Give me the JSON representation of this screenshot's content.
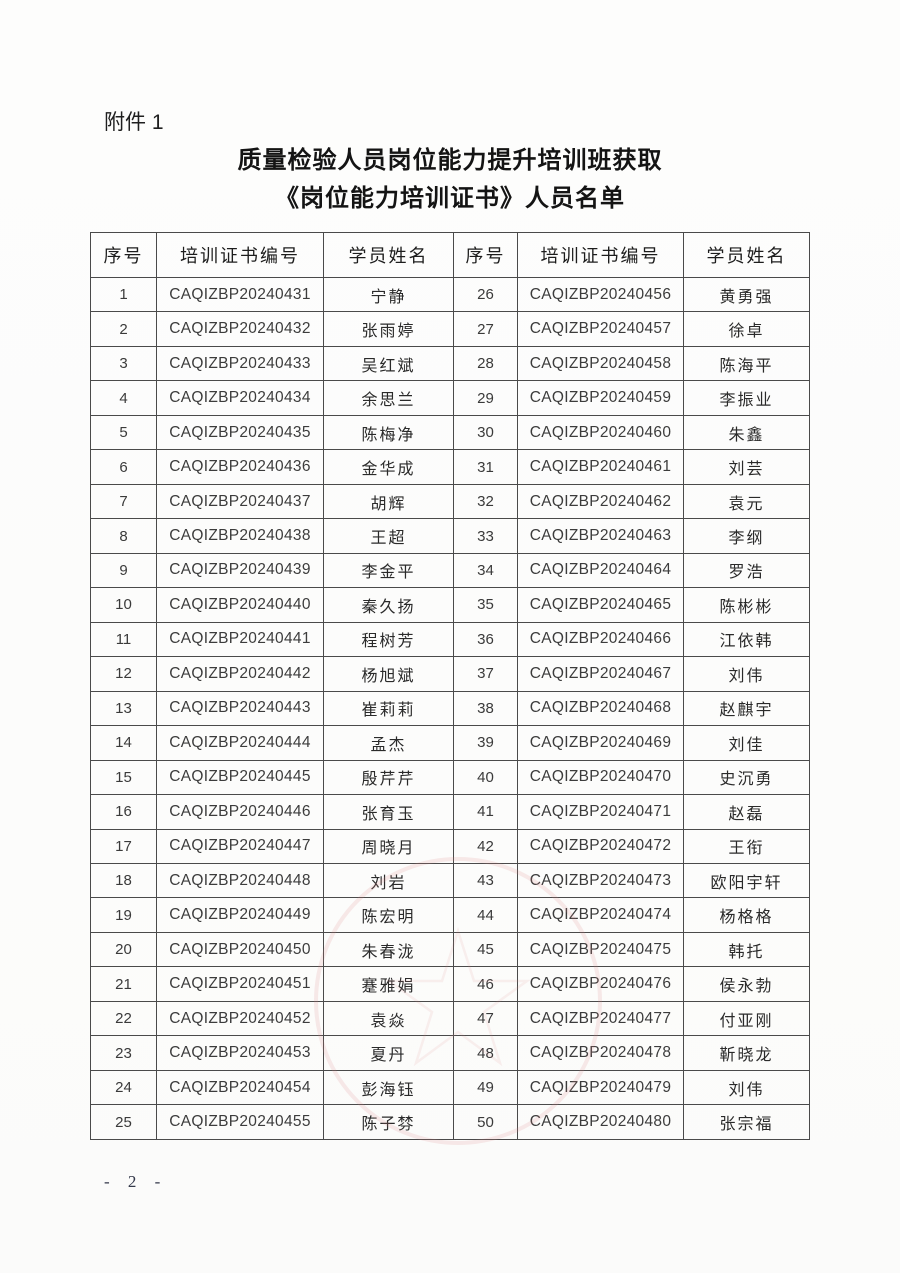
{
  "page": {
    "attachment_label": "附件 1",
    "title_line1": "质量检验人员岗位能力提升培训班获取",
    "title_line2": "《岗位能力培训证书》人员名单",
    "page_number": "- 2 -"
  },
  "seal": {
    "name": "faint-red-round-seal",
    "color": "#dc8484"
  },
  "table": {
    "headers": [
      "序号",
      "培训证书编号",
      "学员姓名",
      "序号",
      "培训证书编号",
      "学员姓名"
    ],
    "rows": [
      {
        "no_left": "1",
        "cert_left": "CAQIZBP20240431",
        "name_left": "宁静",
        "no_right": "26",
        "cert_right": "CAQIZBP20240456",
        "name_right": "黄勇强"
      },
      {
        "no_left": "2",
        "cert_left": "CAQIZBP20240432",
        "name_left": "张雨婷",
        "no_right": "27",
        "cert_right": "CAQIZBP20240457",
        "name_right": "徐卓"
      },
      {
        "no_left": "3",
        "cert_left": "CAQIZBP20240433",
        "name_left": "吴红斌",
        "no_right": "28",
        "cert_right": "CAQIZBP20240458",
        "name_right": "陈海平"
      },
      {
        "no_left": "4",
        "cert_left": "CAQIZBP20240434",
        "name_left": "余思兰",
        "no_right": "29",
        "cert_right": "CAQIZBP20240459",
        "name_right": "李振业"
      },
      {
        "no_left": "5",
        "cert_left": "CAQIZBP20240435",
        "name_left": "陈梅净",
        "no_right": "30",
        "cert_right": "CAQIZBP20240460",
        "name_right": "朱鑫"
      },
      {
        "no_left": "6",
        "cert_left": "CAQIZBP20240436",
        "name_left": "金华成",
        "no_right": "31",
        "cert_right": "CAQIZBP20240461",
        "name_right": "刘芸"
      },
      {
        "no_left": "7",
        "cert_left": "CAQIZBP20240437",
        "name_left": "胡辉",
        "no_right": "32",
        "cert_right": "CAQIZBP20240462",
        "name_right": "袁元"
      },
      {
        "no_left": "8",
        "cert_left": "CAQIZBP20240438",
        "name_left": "王超",
        "no_right": "33",
        "cert_right": "CAQIZBP20240463",
        "name_right": "李纲"
      },
      {
        "no_left": "9",
        "cert_left": "CAQIZBP20240439",
        "name_left": "李金平",
        "no_right": "34",
        "cert_right": "CAQIZBP20240464",
        "name_right": "罗浩"
      },
      {
        "no_left": "10",
        "cert_left": "CAQIZBP20240440",
        "name_left": "秦久扬",
        "no_right": "35",
        "cert_right": "CAQIZBP20240465",
        "name_right": "陈彬彬"
      },
      {
        "no_left": "11",
        "cert_left": "CAQIZBP20240441",
        "name_left": "程树芳",
        "no_right": "36",
        "cert_right": "CAQIZBP20240466",
        "name_right": "江依韩"
      },
      {
        "no_left": "12",
        "cert_left": "CAQIZBP20240442",
        "name_left": "杨旭斌",
        "no_right": "37",
        "cert_right": "CAQIZBP20240467",
        "name_right": "刘伟"
      },
      {
        "no_left": "13",
        "cert_left": "CAQIZBP20240443",
        "name_left": "崔莉莉",
        "no_right": "38",
        "cert_right": "CAQIZBP20240468",
        "name_right": "赵麒宇"
      },
      {
        "no_left": "14",
        "cert_left": "CAQIZBP20240444",
        "name_left": "孟杰",
        "no_right": "39",
        "cert_right": "CAQIZBP20240469",
        "name_right": "刘佳"
      },
      {
        "no_left": "15",
        "cert_left": "CAQIZBP20240445",
        "name_left": "殷芹芹",
        "no_right": "40",
        "cert_right": "CAQIZBP20240470",
        "name_right": "史沉勇"
      },
      {
        "no_left": "16",
        "cert_left": "CAQIZBP20240446",
        "name_left": "张育玉",
        "no_right": "41",
        "cert_right": "CAQIZBP20240471",
        "name_right": "赵磊"
      },
      {
        "no_left": "17",
        "cert_left": "CAQIZBP20240447",
        "name_left": "周晓月",
        "no_right": "42",
        "cert_right": "CAQIZBP20240472",
        "name_right": "王衔"
      },
      {
        "no_left": "18",
        "cert_left": "CAQIZBP20240448",
        "name_left": "刘岩",
        "no_right": "43",
        "cert_right": "CAQIZBP20240473",
        "name_right": "欧阳宇轩"
      },
      {
        "no_left": "19",
        "cert_left": "CAQIZBP20240449",
        "name_left": "陈宏明",
        "no_right": "44",
        "cert_right": "CAQIZBP20240474",
        "name_right": "杨格格"
      },
      {
        "no_left": "20",
        "cert_left": "CAQIZBP20240450",
        "name_left": "朱春泷",
        "no_right": "45",
        "cert_right": "CAQIZBP20240475",
        "name_right": "韩托"
      },
      {
        "no_left": "21",
        "cert_left": "CAQIZBP20240451",
        "name_left": "蹇雅娟",
        "no_right": "46",
        "cert_right": "CAQIZBP20240476",
        "name_right": "侯永勃"
      },
      {
        "no_left": "22",
        "cert_left": "CAQIZBP20240452",
        "name_left": "袁焱",
        "no_right": "47",
        "cert_right": "CAQIZBP20240477",
        "name_right": "付亚刚"
      },
      {
        "no_left": "23",
        "cert_left": "CAQIZBP20240453",
        "name_left": "夏丹",
        "no_right": "48",
        "cert_right": "CAQIZBP20240478",
        "name_right": "靳晓龙"
      },
      {
        "no_left": "24",
        "cert_left": "CAQIZBP20240454",
        "name_left": "彭海钰",
        "no_right": "49",
        "cert_right": "CAQIZBP20240479",
        "name_right": "刘伟"
      },
      {
        "no_left": "25",
        "cert_left": "CAQIZBP20240455",
        "name_left": "陈子棼",
        "no_right": "50",
        "cert_right": "CAQIZBP20240480",
        "name_right": "张宗福"
      }
    ]
  }
}
